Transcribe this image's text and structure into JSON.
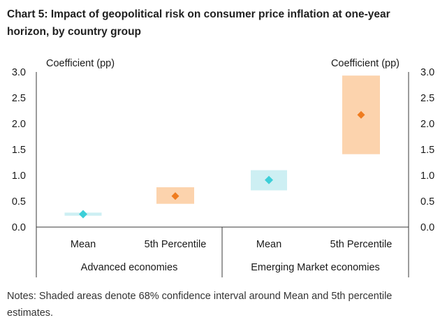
{
  "title": "Chart 5: Impact of geopolitical risk on consumer price inflation at one-year horizon, by country group",
  "notes": "Notes: Shaded areas denote 68% confidence interval around Mean and 5th percentile estimates.",
  "colors": {
    "mean_fill": "#cdeff3",
    "mean_marker": "#3ccfd8",
    "pct_fill": "#fcd3ad",
    "pct_marker": "#ef7c1f"
  },
  "chart_data": {
    "type": "scatter",
    "title": "Impact of geopolitical risk on consumer price inflation at one-year horizon, by country group",
    "ylabel_left": "Coefficient (pp)",
    "ylabel_right": "Coefficient (pp)",
    "ylim": [
      0,
      3
    ],
    "yticks": [
      "0.0",
      "0.5",
      "1.0",
      "1.5",
      "2.0",
      "2.5",
      "3.0"
    ],
    "groups": [
      "Advanced economies",
      "Emerging Market economies"
    ],
    "categories": [
      "Mean",
      "5th Percentile",
      "Mean",
      "5th Percentile"
    ],
    "series": [
      {
        "name": "Mean",
        "group": "Advanced economies",
        "estimate": 0.25,
        "ci_low": 0.22,
        "ci_high": 0.28,
        "style": "mean"
      },
      {
        "name": "5th Percentile",
        "group": "Advanced economies",
        "estimate": 0.6,
        "ci_low": 0.45,
        "ci_high": 0.77,
        "style": "pct"
      },
      {
        "name": "Mean",
        "group": "Emerging Market economies",
        "estimate": 0.91,
        "ci_low": 0.71,
        "ci_high": 1.1,
        "style": "mean"
      },
      {
        "name": "5th Percentile",
        "group": "Emerging Market economies",
        "estimate": 2.17,
        "ci_low": 1.41,
        "ci_high": 2.93,
        "style": "pct"
      }
    ]
  }
}
